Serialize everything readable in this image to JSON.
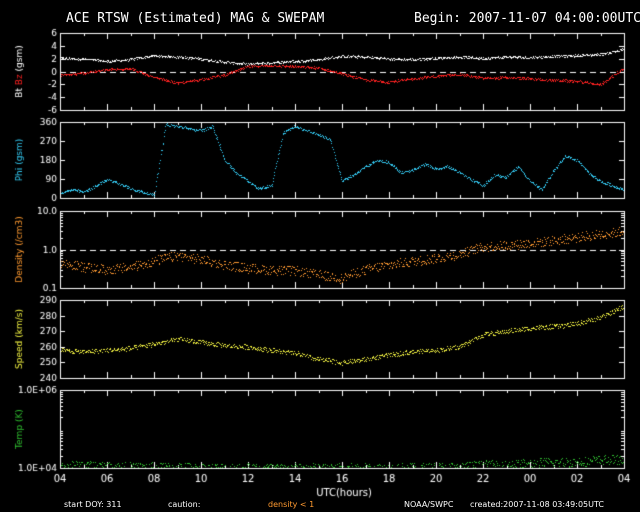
{
  "header": {
    "title": "ACE RTSW (Estimated) MAG & SWEPAM",
    "begin": "Begin: 2007-11-07 04:00:00UTC"
  },
  "footer": {
    "start_doy": "start DOY: 311",
    "caution": "caution:",
    "density_note": "density < 1",
    "source": "NOAA/SWPC",
    "created": "created:2007-11-08 03:49:05UTC"
  },
  "colors": {
    "background": "#000000",
    "axes": "#ffffff",
    "bt": "#ffffff",
    "bz": "#ff2020",
    "phi": "#33c8f0",
    "density": "#ff9a30",
    "speed": "#f0f040",
    "temp": "#30c030"
  },
  "chart_data": [
    {
      "type": "scatter",
      "ylabel": "Bt Bz (gsm)",
      "ylabel_parts": [
        "Bt",
        "Bz",
        "(gsm)"
      ],
      "ylim": [
        -6,
        6
      ],
      "yticks": [
        "6",
        "4",
        "2",
        "0",
        "-2",
        "-4",
        "-6"
      ],
      "reference_line": 0,
      "series": [
        {
          "name": "Bt",
          "x": [
            4,
            5,
            6,
            7,
            8,
            9,
            10,
            11,
            12,
            13,
            14,
            15,
            16,
            17,
            18,
            19,
            20,
            21,
            22,
            23,
            24,
            25,
            26,
            27,
            28
          ],
          "y": [
            2.1,
            2.0,
            1.6,
            1.9,
            2.5,
            2.3,
            2.0,
            1.5,
            1.2,
            1.4,
            1.6,
            1.9,
            2.4,
            2.3,
            2.0,
            1.9,
            2.1,
            2.3,
            2.1,
            2.3,
            2.2,
            2.4,
            2.5,
            2.7,
            3.5
          ]
        },
        {
          "name": "Bz",
          "x": [
            4,
            5,
            6,
            7,
            8,
            9,
            10,
            11,
            12,
            13,
            14,
            15,
            16,
            17,
            18,
            19,
            20,
            21,
            22,
            23,
            24,
            25,
            26,
            27,
            28
          ],
          "y": [
            -0.6,
            -0.2,
            0.3,
            0.5,
            -0.9,
            -1.8,
            -1.2,
            -0.5,
            0.8,
            1.0,
            0.8,
            0.6,
            -0.3,
            -1.3,
            -1.6,
            -1.1,
            -0.7,
            -0.4,
            -1.0,
            -0.9,
            -1.1,
            -1.3,
            -1.5,
            -2.0,
            0.6
          ]
        }
      ]
    },
    {
      "type": "scatter",
      "ylabel": "Phi (gsm)",
      "ylim": [
        0,
        360
      ],
      "yticks": [
        "360",
        "270",
        "180",
        "90",
        "0"
      ],
      "series": [
        {
          "name": "Phi",
          "x": [
            4,
            4.5,
            5,
            5.5,
            6,
            6.5,
            7,
            7.5,
            8,
            8.5,
            9,
            9.5,
            10,
            10.5,
            11,
            11.5,
            12,
            12.5,
            13,
            13.5,
            14,
            14.5,
            15,
            15.5,
            16,
            16.5,
            17,
            17.5,
            18,
            18.5,
            19,
            19.5,
            20,
            20.5,
            21,
            21.5,
            22,
            22.5,
            23,
            23.5,
            24,
            24.5,
            25,
            25.5,
            26,
            26.5,
            27,
            27.5,
            28
          ],
          "y": [
            25,
            40,
            30,
            55,
            90,
            70,
            45,
            30,
            15,
            350,
            340,
            330,
            320,
            340,
            180,
            120,
            80,
            45,
            60,
            310,
            340,
            320,
            300,
            280,
            80,
            110,
            150,
            180,
            170,
            120,
            130,
            160,
            140,
            150,
            120,
            90,
            60,
            110,
            100,
            150,
            80,
            40,
            130,
            200,
            180,
            120,
            80,
            60,
            40
          ]
        }
      ]
    },
    {
      "type": "scatter",
      "ylabel": "Density (/cm3)",
      "yscale": "log",
      "ylim": [
        0.1,
        10
      ],
      "yticks": [
        "10.0",
        "1.0",
        "0.1"
      ],
      "reference_line": 1,
      "series": [
        {
          "name": "Density",
          "x": [
            4,
            5,
            6,
            7,
            8,
            9,
            10,
            11,
            12,
            13,
            14,
            15,
            16,
            17,
            18,
            19,
            20,
            21,
            22,
            23,
            24,
            25,
            26,
            27,
            28
          ],
          "y": [
            0.45,
            0.35,
            0.3,
            0.35,
            0.5,
            0.7,
            0.55,
            0.4,
            0.33,
            0.3,
            0.28,
            0.22,
            0.18,
            0.3,
            0.4,
            0.5,
            0.6,
            0.75,
            1.2,
            1.3,
            1.5,
            1.7,
            2.1,
            2.5,
            3.0
          ]
        }
      ]
    },
    {
      "type": "scatter",
      "ylabel": "Speed (km/s)",
      "ylim": [
        240,
        290
      ],
      "yticks": [
        "290",
        "280",
        "270",
        "260",
        "250",
        "240"
      ],
      "series": [
        {
          "name": "Speed",
          "x": [
            4,
            5,
            6,
            7,
            8,
            9,
            10,
            11,
            12,
            13,
            14,
            15,
            16,
            17,
            18,
            19,
            20,
            21,
            22,
            23,
            24,
            25,
            26,
            27,
            28
          ],
          "y": [
            258,
            257,
            258,
            259,
            262,
            265,
            263,
            261,
            260,
            258,
            256,
            252,
            250,
            252,
            255,
            257,
            258,
            260,
            268,
            270,
            272,
            273,
            275,
            279,
            286
          ]
        }
      ]
    },
    {
      "type": "scatter",
      "ylabel": "Temp (K)",
      "yscale": "log",
      "ylim": [
        10000,
        1000000
      ],
      "yticks": [
        "1.0E+06",
        "1.0E+04"
      ],
      "series": [
        {
          "name": "Temp",
          "x": [
            4,
            5,
            6,
            7,
            8,
            9,
            10,
            11,
            12,
            13,
            14,
            15,
            16,
            17,
            18,
            19,
            20,
            21,
            22,
            23,
            24,
            25,
            26,
            27,
            28
          ],
          "y": [
            11000,
            12000,
            11000,
            10500,
            10500,
            10500,
            10200,
            10100,
            10050,
            10050,
            10020,
            10020,
            10050,
            10100,
            10100,
            10200,
            10300,
            10500,
            12000,
            12000,
            13000,
            14000,
            14500,
            16000,
            17000
          ]
        }
      ]
    }
  ],
  "x_axis": {
    "label": "UTC(hours)",
    "range": [
      4,
      28
    ],
    "ticklabels": [
      "04",
      "06",
      "08",
      "10",
      "12",
      "14",
      "16",
      "18",
      "20",
      "22",
      "00",
      "02",
      "04"
    ]
  }
}
